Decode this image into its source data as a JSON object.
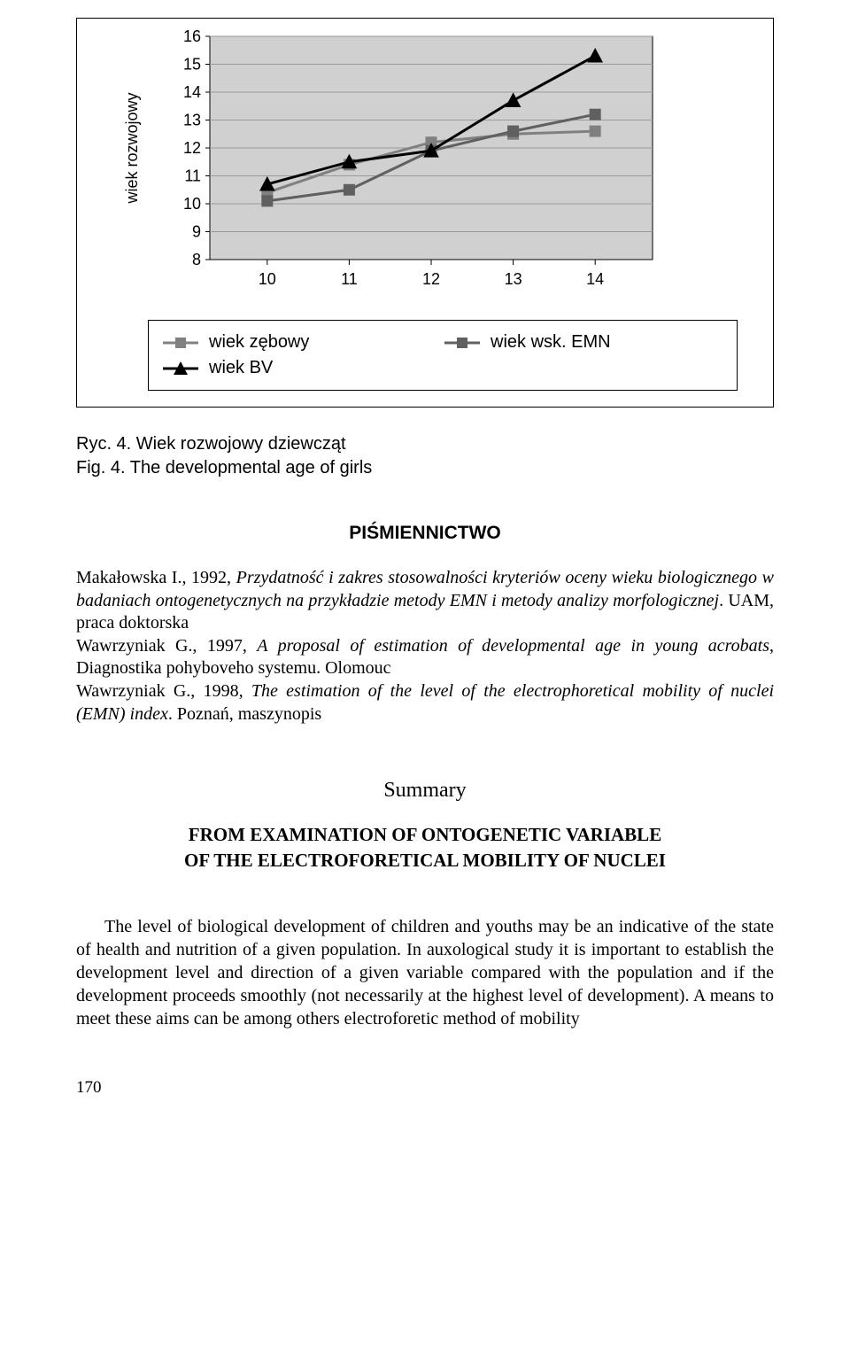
{
  "chart": {
    "type": "line",
    "plot_bg": "#d0d0d0",
    "grid_color": "#9a9a9a",
    "axis_color": "#000000",
    "y_axis_label": "wiek rozwojowy",
    "axis_label_fontsize": 18,
    "tick_fontsize": 18,
    "x_ticks": [
      10,
      11,
      12,
      13,
      14
    ],
    "y_ticks": [
      8,
      9,
      10,
      11,
      12,
      13,
      14,
      15,
      16
    ],
    "xlim": [
      9.3,
      14.7
    ],
    "ylim": [
      8,
      16
    ],
    "series": [
      {
        "name": "wiek zębowy",
        "marker": "square",
        "marker_fill": "#808080",
        "line_color": "#808080",
        "line_width": 3,
        "x": [
          10,
          11,
          12,
          13,
          14
        ],
        "y": [
          10.4,
          11.4,
          12.2,
          12.5,
          12.6
        ]
      },
      {
        "name": "wiek wsk. EMN",
        "marker": "square",
        "marker_fill": "#606060",
        "line_color": "#606060",
        "line_width": 3,
        "x": [
          10,
          11,
          12,
          13,
          14
        ],
        "y": [
          10.1,
          10.5,
          11.9,
          12.6,
          13.2
        ]
      },
      {
        "name": "wiek BV",
        "marker": "triangle",
        "marker_fill": "#000000",
        "line_color": "#000000",
        "line_width": 3,
        "x": [
          10,
          11,
          12,
          13,
          14
        ],
        "y": [
          10.7,
          11.5,
          11.9,
          13.7,
          15.3
        ]
      }
    ],
    "legend": {
      "items": [
        {
          "label": "wiek zębowy",
          "series": 0
        },
        {
          "label": "wiek wsk. EMN",
          "series": 1
        },
        {
          "label": "wiek BV",
          "series": 2
        }
      ]
    }
  },
  "caption": {
    "line1": "Ryc. 4. Wiek rozwojowy dziewcząt",
    "line2": "Fig. 4. The developmental age of girls"
  },
  "section_heading": "PIŚMIENNICTWO",
  "references": "Makałowska I., 1992, Przydatność i zakres stosowalności kryteriów oceny wieku biologicznego w badaniach ontogenetycznych na przykładzie metody EMN i metody analizy morfologicznej. UAM, praca doktorska\nWawrzyniak G., 1997, A proposal of estimation of developmental age in young acrobats, Diagnostika pohyboveho systemu. Olomouc\nWawrzyniak G., 1998, The estimation of the level of the electrophoretical mobility of nuclei (EMN) index. Poznań, maszynopis",
  "summary_heading": "Summary",
  "summary_title_line1": "FROM EXAMINATION OF ONTOGENETIC VARIABLE",
  "summary_title_line2": "OF THE ELECTROFORETICAL MOBILITY OF NUCLEI",
  "body": "The level of biological development of children and youths may be an indicative of the state of health and nutrition of a given population. In auxological study it is important to establish the development level and direction of a given variable compared with the population and if the development proceeds smoothly (not necessarily at the highest level of development). A means to meet these aims can be among others electroforetic method of mobility",
  "page_number": "170"
}
